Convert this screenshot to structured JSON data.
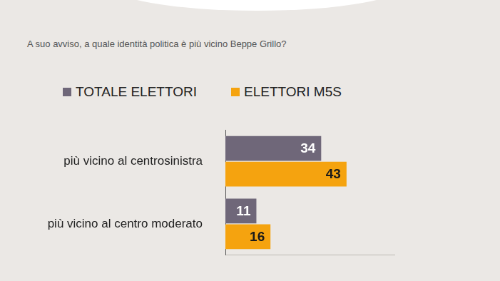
{
  "chart_data": {
    "type": "bar",
    "orientation": "horizontal",
    "title": "A suo avviso, a quale identità politica è più vicino Beppe Grillo?",
    "categories": [
      "più vicino al centrosinistra",
      "più vicino al centro moderato"
    ],
    "series": [
      {
        "name": "TOTALE ELETTORI",
        "color": "#6f6779",
        "values": [
          34,
          11
        ]
      },
      {
        "name": "ELETTORI M5S",
        "color": "#f5a30f",
        "values": [
          43,
          16
        ]
      }
    ],
    "xlim": [
      0,
      60
    ],
    "tick_labels": "y",
    "data_labels": true,
    "legend": "top-left",
    "grid": false
  }
}
